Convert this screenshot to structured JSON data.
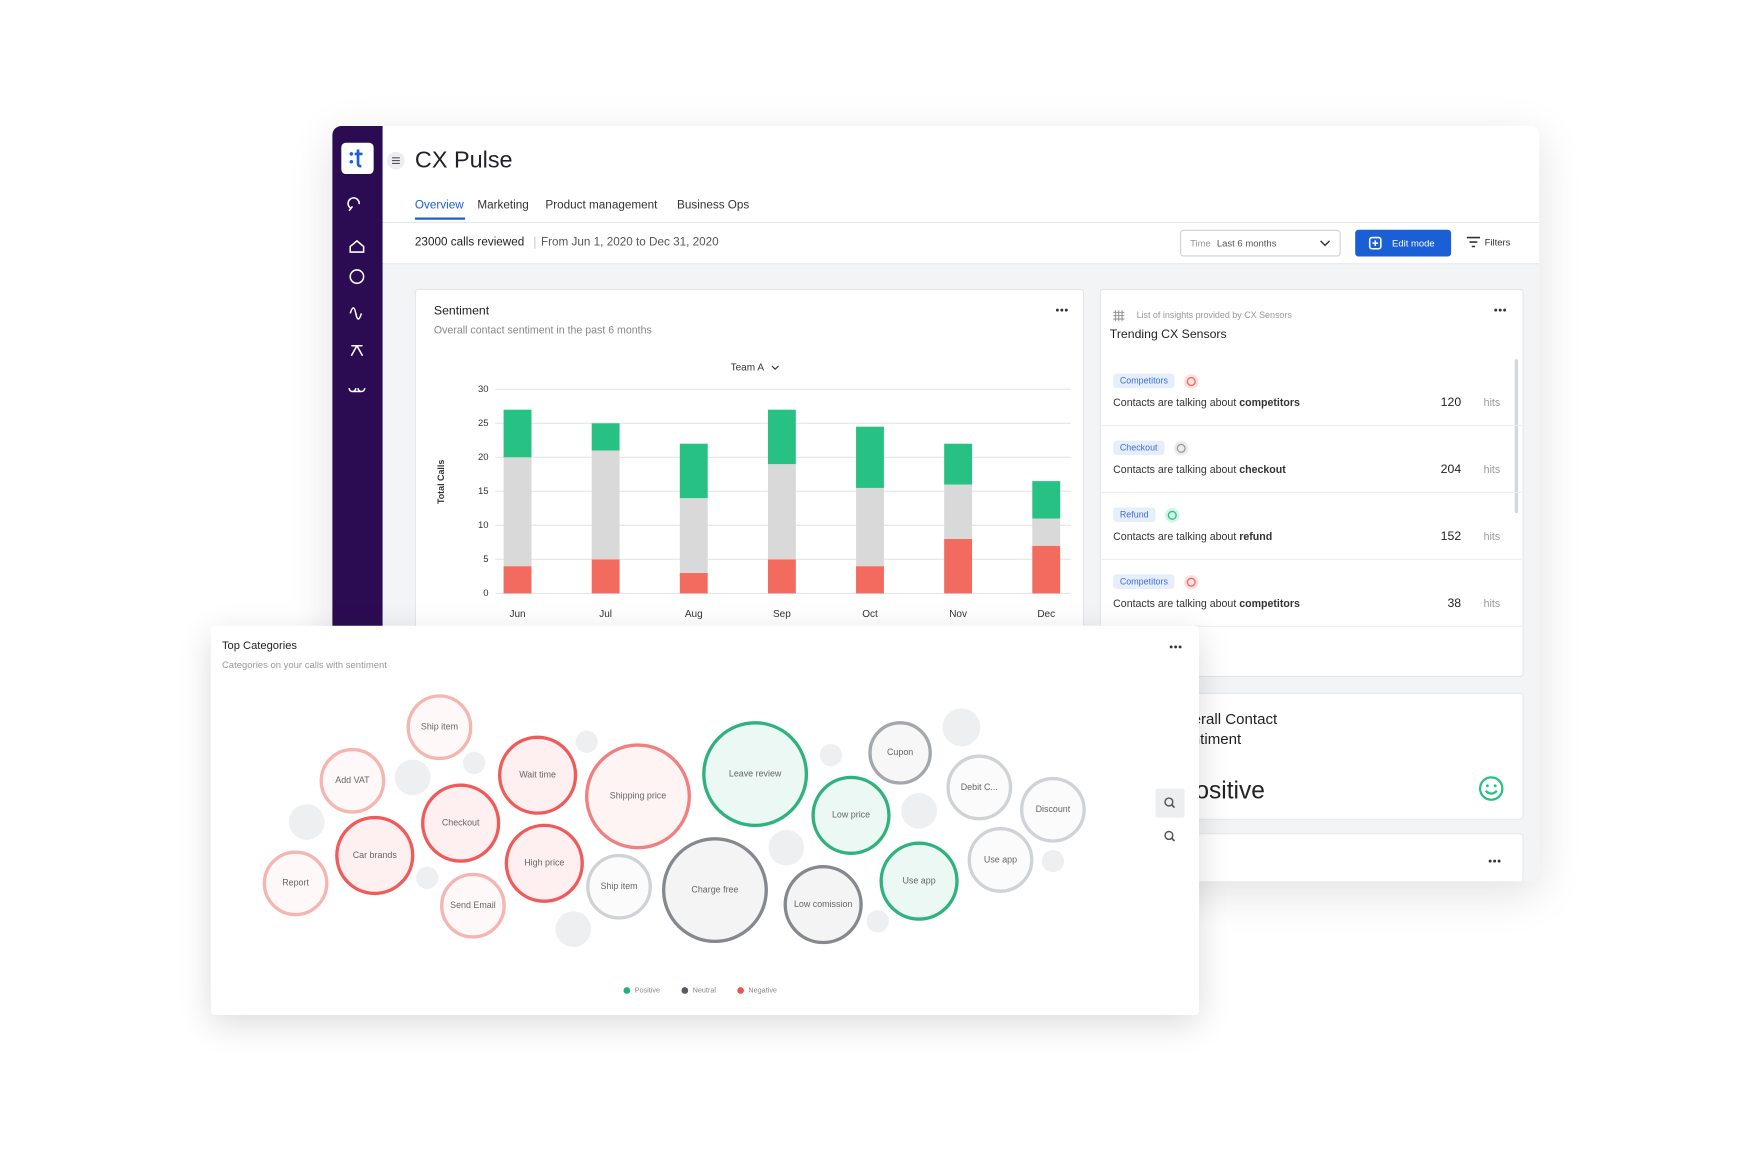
{
  "app": {
    "title": "CX Pulse",
    "nav_tabs": [
      "Overview",
      "Marketing",
      "Product management",
      "Business Ops"
    ],
    "calls_reviewed": "23000 calls reviewed",
    "date_range": "From Jun 1, 2020 to Dec 31, 2020",
    "time_filter_label": "Time",
    "time_filter_value": "Last 6 months",
    "edit_button": "Edit mode",
    "filters_button": "Filters"
  },
  "chart_data": [
    {
      "type": "bar",
      "stacked": true,
      "title": "Sentiment",
      "subtitle": "Overall contact sentiment in the past 6 months",
      "selector": "Team A",
      "y_label": "Total Calls",
      "categories": [
        "Jun",
        "Jul",
        "Aug",
        "Sep",
        "Oct",
        "Nov",
        "Dec"
      ],
      "series": [
        {
          "color": "#f26b5e",
          "values": [
            4,
            5,
            3,
            5,
            4,
            8,
            7
          ]
        },
        {
          "color": "#d9d9d9",
          "values": [
            16,
            16,
            11,
            14,
            11.5,
            8,
            4
          ]
        },
        {
          "color": "#27c283",
          "values": [
            7,
            4,
            8,
            8,
            9,
            6,
            5.5
          ]
        }
      ],
      "ylim": [
        0,
        30
      ],
      "yticks": [
        0,
        5,
        10,
        15,
        20,
        25,
        30
      ],
      "grid": true
    },
    {
      "type": "bubble",
      "title": "Top Categories",
      "subtitle": "Categories on your calls with sentiment",
      "labels": [
        "Ship item",
        "Add VAT",
        "Report",
        "Car brands",
        "Checkout",
        "Send Email",
        "Wait time",
        "High price",
        "Shipping price",
        "Ship item",
        "Charge free",
        "Leave review",
        "Low price",
        "Low comission",
        "Cupon",
        "Use app",
        "Debit C...",
        "Use app",
        "Discount"
      ],
      "colors": [
        "#f5b5b1",
        "#f5b5b1",
        "#f5b5b1",
        "#ef5b5b",
        "#ef5b5b",
        "#f5b5b1",
        "#ef5b5b",
        "#ef5b5b",
        "#f08080",
        "#cfd3d6",
        "#85898e",
        "#2fb27d",
        "#2fb27d",
        "#85898e",
        "#a4a8ac",
        "#2fb27d",
        "#cfd3d6",
        "#cfd3d6",
        "#cfd3d6"
      ],
      "sizes": [
        28,
        28,
        28,
        34,
        34,
        28,
        34,
        34,
        46,
        28,
        46,
        46,
        34,
        34,
        27,
        34,
        28,
        28,
        28
      ],
      "legend": [
        {
          "name": "Positive",
          "color": "#1eb478"
        },
        {
          "name": "Neutral",
          "color": "#555a60"
        },
        {
          "name": "Negative",
          "color": "#f0534f"
        }
      ]
    }
  ],
  "sensors": {
    "caption": "List of insights provided by CX Sensors",
    "title": "Trending CX Sensors",
    "hits_label": "hits",
    "items": [
      {
        "tag": "Competitors",
        "icon_color": "#f26b5e",
        "text": "Contacts are talking about",
        "keyword": "competitors",
        "hits": 120
      },
      {
        "tag": "Checkout",
        "icon_color": "#9a9ea3",
        "text": "Contacts are talking about",
        "keyword": "checkout",
        "hits": 204
      },
      {
        "tag": "Refund",
        "icon_color": "#27c283",
        "text": "Contacts are talking about",
        "keyword": "refund",
        "hits": 152
      },
      {
        "tag": "Competitors",
        "icon_color": "#f26b5e",
        "text": "Contacts are talking about",
        "keyword": "competitors",
        "hits": 38
      }
    ]
  },
  "overall": {
    "title": "Overall Contact Sentiment",
    "value": "Positive"
  }
}
